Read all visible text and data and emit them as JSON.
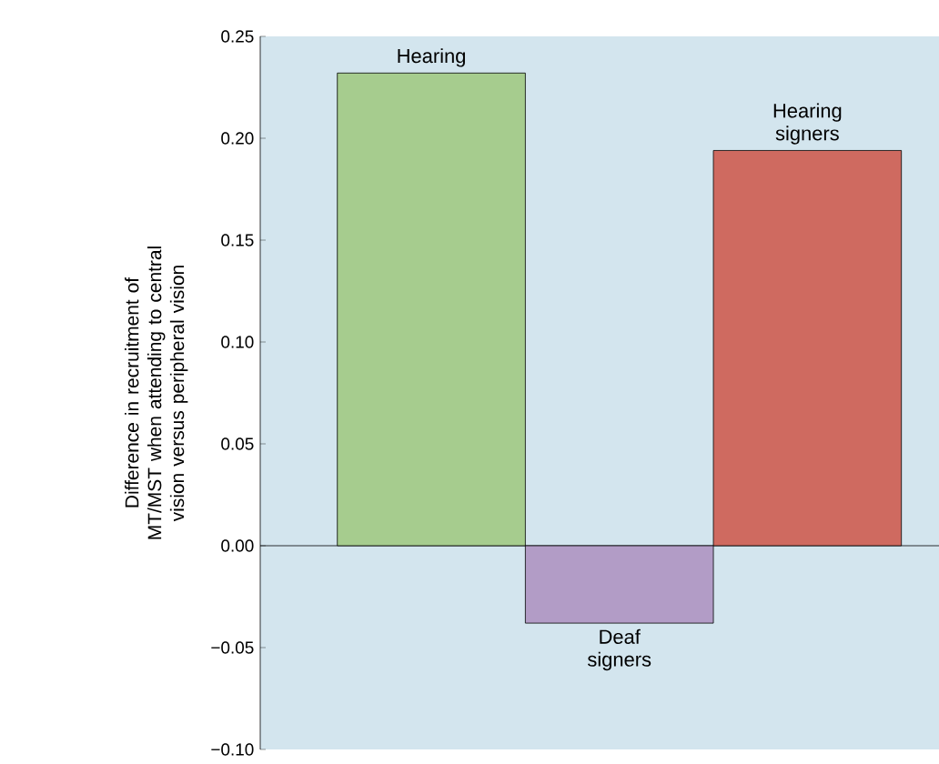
{
  "chart_data": {
    "type": "bar",
    "ylabel": "Difference in recruitment of MT/MST when attending to central vision versus peripheral vision",
    "categories": [
      "Hearing",
      "Deaf signers",
      "Hearing signers"
    ],
    "values": [
      0.232,
      -0.038,
      0.194
    ],
    "colors": [
      "#a6cc8e",
      "#b29cc6",
      "#cf6a60"
    ],
    "ylim": [
      -0.1,
      0.25
    ],
    "yticks": [
      {
        "value": -0.1,
        "label": "−0.10"
      },
      {
        "value": -0.05,
        "label": "−0.05"
      },
      {
        "value": 0,
        "label": "0.00"
      },
      {
        "value": 0.05,
        "label": "0.05"
      },
      {
        "value": 0.1,
        "label": "0.10"
      },
      {
        "value": 0.15,
        "label": "0.15"
      },
      {
        "value": 0.2,
        "label": "0.20"
      },
      {
        "value": 0.25,
        "label": "0.25"
      }
    ]
  }
}
